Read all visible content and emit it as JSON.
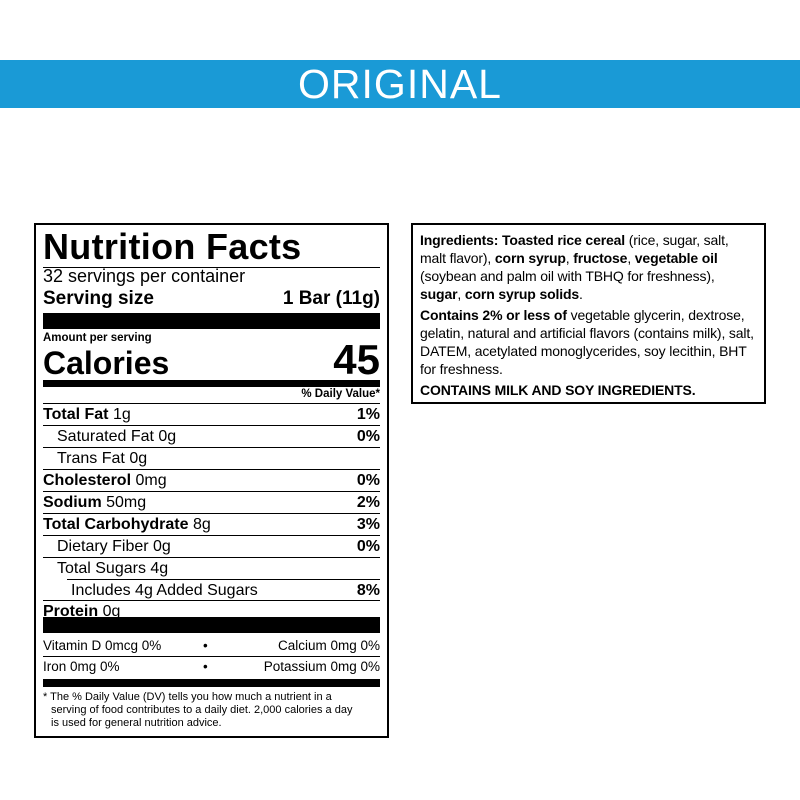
{
  "banner": {
    "title": "ORIGINAL"
  },
  "nutrition": {
    "title": "Nutrition Facts",
    "servings": "32 servings per container",
    "serving_size_label": "Serving size",
    "serving_size": "1 Bar (11g)",
    "amount_per_serving": "Amount per serving",
    "calories_label": "Calories",
    "calories": 45,
    "dv_header": "% Daily Value*",
    "rows": [
      {
        "name": "Total Fat",
        "amount": "1g",
        "dv": "1%"
      },
      {
        "name": "Saturated Fat",
        "amount": "0g",
        "dv": "0%"
      },
      {
        "name": "Trans Fat",
        "amount": "0g"
      },
      {
        "name": "Cholesterol",
        "amount": "0mg",
        "dv": "0%"
      },
      {
        "name": "Sodium",
        "amount": "50mg",
        "dv": "2%"
      },
      {
        "name": "Total Carbohydrate",
        "amount": "8g",
        "dv": "3%"
      },
      {
        "name": "Dietary Fiber",
        "amount": "0g",
        "dv": "0%"
      },
      {
        "name": "Total Sugars",
        "amount": "4g"
      },
      {
        "name": "Includes 4g Added Sugars",
        "dv": "8%"
      },
      {
        "name": "Protein",
        "amount": "0g"
      }
    ],
    "vitamins": [
      [
        "Vitamin D 0mcg 0%",
        "•",
        "Calcium 0mg 0%"
      ],
      [
        "Iron 0mg 0%",
        "•",
        "Potassium 0mg 0%"
      ]
    ],
    "footnote": "* The % Daily Value (DV) tells you how much a nutrient in a serving of food contributes to a daily diet. 2,000 calories a day is used for general nutrition advice."
  },
  "ingredients": {
    "paragraphs": [
      [
        "Ingredients: Toasted rice cereal",
        " (rice, sugar, salt, malt flavor), ",
        "corn syrup",
        ", ",
        "fructose",
        ", ",
        "vegetable oil",
        " (soybean and palm oil with TBHQ for freshness), ",
        "sugar",
        ", ",
        "corn syrup solids",
        "."
      ],
      [
        "Contains 2% or less of",
        " vegetable glycerin, dextrose, gelatin, natural and artificial flavors (contains milk), salt, DATEM, acetylated monoglycerides, soy lecithin, BHT for freshness."
      ],
      [
        "CONTAINS MILK AND SOY INGREDIENTS."
      ]
    ]
  }
}
